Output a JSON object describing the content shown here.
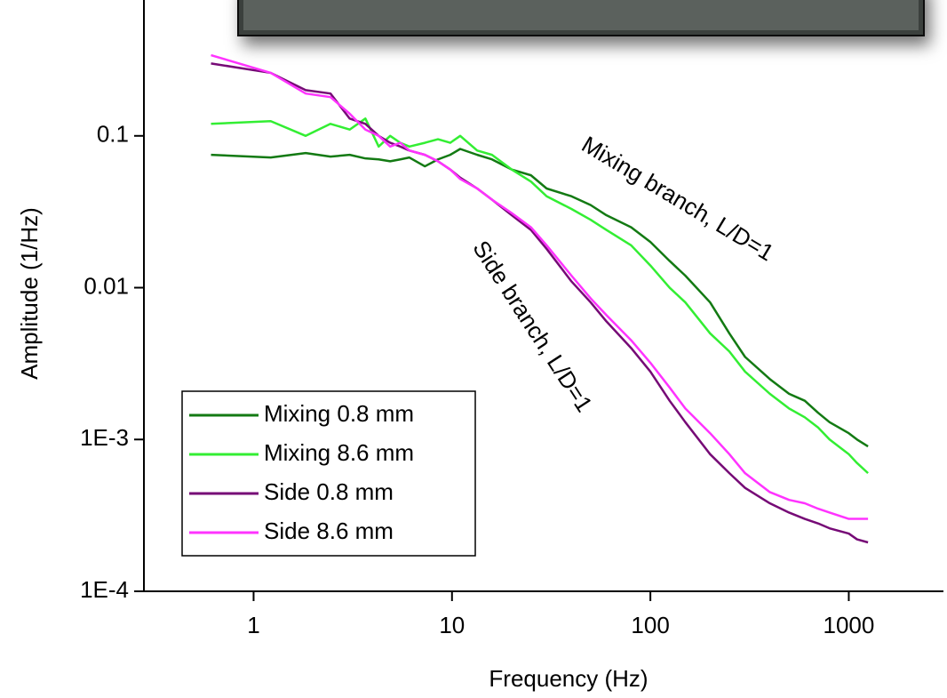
{
  "chart_data": {
    "type": "line",
    "x_label": "Frequency (Hz)",
    "y_label": "Amplitude (1/Hz)",
    "xscale": "log",
    "yscale": "log",
    "xlim": [
      0.28,
      3000
    ],
    "ylim": [
      0.0001,
      0.785
    ],
    "xticks": [
      1,
      10,
      100,
      1000
    ],
    "yticks": [
      {
        "value": 0.0001,
        "label": "1E-4"
      },
      {
        "value": 0.001,
        "label": "1E-3"
      },
      0.01,
      0.1
    ],
    "legend": "lower left",
    "annotations": [
      "Mixing branch, L/D=1",
      "Side branch, L/D=1"
    ],
    "x": [
      0.61,
      1.22,
      1.83,
      2.44,
      3.05,
      3.66,
      4.27,
      4.88,
      5.49,
      6.1,
      7.3,
      8.5,
      9.8,
      11,
      13.4,
      15.9,
      20,
      25,
      30,
      40,
      50,
      60,
      80,
      100,
      125,
      150,
      200,
      250,
      300,
      400,
      500,
      600,
      700,
      800,
      1000,
      1100,
      1250
    ],
    "series": [
      {
        "name": "Mixing 0.8 mm",
        "color": "#137a13",
        "values": [
          0.075,
          0.072,
          0.077,
          0.073,
          0.075,
          0.071,
          0.07,
          0.068,
          0.07,
          0.072,
          0.063,
          0.07,
          0.075,
          0.082,
          0.075,
          0.07,
          0.06,
          0.055,
          0.045,
          0.04,
          0.035,
          0.03,
          0.025,
          0.02,
          0.015,
          0.012,
          0.008,
          0.005,
          0.0035,
          0.0025,
          0.002,
          0.0018,
          0.0015,
          0.0013,
          0.0011,
          0.001,
          0.0009
        ]
      },
      {
        "name": "Mixing 8.6 mm",
        "color": "#33ee33",
        "values": [
          0.12,
          0.125,
          0.1,
          0.12,
          0.11,
          0.13,
          0.085,
          0.1,
          0.09,
          0.085,
          0.09,
          0.095,
          0.09,
          0.1,
          0.08,
          0.075,
          0.06,
          0.05,
          0.04,
          0.033,
          0.028,
          0.024,
          0.019,
          0.014,
          0.01,
          0.008,
          0.005,
          0.0038,
          0.0028,
          0.002,
          0.0016,
          0.0014,
          0.0012,
          0.001,
          0.0008,
          0.0007,
          0.0006
        ]
      },
      {
        "name": "Side 0.8 mm",
        "color": "#760a76",
        "values": [
          0.3,
          0.26,
          0.2,
          0.19,
          0.13,
          0.12,
          0.1,
          0.09,
          0.085,
          0.08,
          0.075,
          0.068,
          0.06,
          0.053,
          0.045,
          0.038,
          0.03,
          0.024,
          0.018,
          0.011,
          0.008,
          0.006,
          0.004,
          0.0028,
          0.0018,
          0.0013,
          0.0008,
          0.0006,
          0.00048,
          0.00038,
          0.00033,
          0.0003,
          0.00028,
          0.00026,
          0.00024,
          0.00022,
          0.00021
        ]
      },
      {
        "name": "Side 8.6 mm",
        "color": "#ff33ff",
        "values": [
          0.34,
          0.26,
          0.19,
          0.18,
          0.14,
          0.11,
          0.1,
          0.085,
          0.09,
          0.08,
          0.075,
          0.068,
          0.06,
          0.052,
          0.045,
          0.038,
          0.031,
          0.025,
          0.019,
          0.012,
          0.0085,
          0.0066,
          0.0045,
          0.0032,
          0.0022,
          0.0016,
          0.0011,
          0.0008,
          0.0006,
          0.00045,
          0.0004,
          0.00038,
          0.00035,
          0.00033,
          0.0003,
          0.0003,
          0.0003
        ]
      }
    ]
  }
}
